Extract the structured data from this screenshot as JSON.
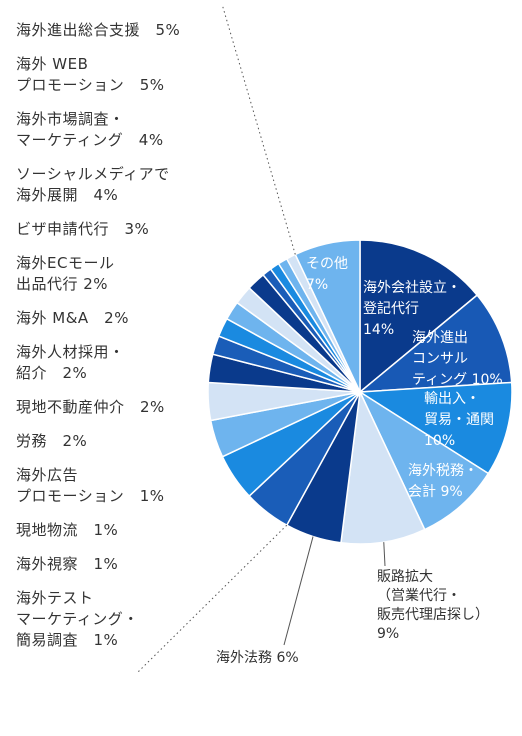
{
  "chart_data": {
    "type": "pie",
    "start": "top",
    "direction": "clockwise",
    "series": [
      {
        "name": "海外会社設立・登記代行",
        "value": 14,
        "color": "#0A3A8C",
        "label_lines": [
          "海外会社設立・",
          "登記代行",
          "14%"
        ],
        "label_pos": "inside"
      },
      {
        "name": "海外進出コンサルティング",
        "value": 10,
        "color": "#1859B5",
        "label_lines": [
          "海外進出",
          "コンサル",
          "ティング 10%"
        ],
        "label_pos": "inside"
      },
      {
        "name": "輸出入・貿易・通関",
        "value": 10,
        "color": "#1A8AE0",
        "label_lines": [
          "輸出入・",
          "貿易・通関",
          "10%"
        ],
        "label_pos": "inside"
      },
      {
        "name": "海外税務・会計",
        "value": 9,
        "color": "#6EB4EE",
        "label_lines": [
          "海外税務・",
          "会計 9%"
        ],
        "label_pos": "inside"
      },
      {
        "name": "販路拡大（営業代行・販売代理店探し）",
        "value": 9,
        "color": "#D3E3F5",
        "label_lines": [
          "販路拡大",
          "（営業代行・",
          "販売代理店探し）",
          "9%"
        ],
        "label_pos": "outside-bottom"
      },
      {
        "name": "海外法務",
        "value": 6,
        "color": "#0A3A8C",
        "label_lines": [
          "海外法務 6%"
        ],
        "label_pos": "outside-bottom-left"
      },
      {
        "name": "海外進出総合支援",
        "value": 5,
        "color": "#1A5DB8",
        "label_lines": [],
        "label_pos": "legend"
      },
      {
        "name": "海外WEBプロモーション",
        "value": 5,
        "color": "#1A8AE0",
        "label_lines": [],
        "label_pos": "legend"
      },
      {
        "name": "海外市場調査・マーケティング",
        "value": 4,
        "color": "#6EB4EE",
        "label_lines": [],
        "label_pos": "legend"
      },
      {
        "name": "ソーシャルメディアで海外展開",
        "value": 4,
        "color": "#D3E3F5",
        "label_lines": [],
        "label_pos": "legend"
      },
      {
        "name": "ビザ申請代行",
        "value": 3,
        "color": "#0A3A8C",
        "label_lines": [],
        "label_pos": "legend"
      },
      {
        "name": "海外ECモール出品代行",
        "value": 2,
        "color": "#1A5DB8",
        "label_lines": [],
        "label_pos": "legend"
      },
      {
        "name": "海外M&A",
        "value": 2,
        "color": "#1A8AE0",
        "label_lines": [],
        "label_pos": "legend"
      },
      {
        "name": "海外人材採用・紹介",
        "value": 2,
        "color": "#6EB4EE",
        "label_lines": [],
        "label_pos": "legend"
      },
      {
        "name": "現地不動産仲介",
        "value": 2,
        "color": "#D3E3F5",
        "label_lines": [],
        "label_pos": "legend"
      },
      {
        "name": "労務",
        "value": 2,
        "color": "#0A3A8C",
        "label_lines": [],
        "label_pos": "legend"
      },
      {
        "name": "海外広告プロモーション",
        "value": 1,
        "color": "#1A5DB8",
        "label_lines": [],
        "label_pos": "legend"
      },
      {
        "name": "現地物流",
        "value": 1,
        "color": "#1A8AE0",
        "label_lines": [],
        "label_pos": "legend"
      },
      {
        "name": "海外視察",
        "value": 1,
        "color": "#6EB4EE",
        "label_lines": [],
        "label_pos": "legend"
      },
      {
        "name": "海外テストマーケティング・簡易調査",
        "value": 1,
        "color": "#D3E3F5",
        "label_lines": [],
        "label_pos": "legend"
      },
      {
        "name": "その他",
        "value": 7,
        "color": "#6EB4EE",
        "label_lines": [
          "その他",
          "7%"
        ],
        "label_pos": "inside"
      }
    ],
    "legend": [
      {
        "lines": [
          "海外進出総合支援　5%"
        ]
      },
      {
        "lines": [
          "海外 WEB",
          "プロモーション　5%"
        ]
      },
      {
        "lines": [
          "海外市場調査・",
          "マーケティング　4%"
        ]
      },
      {
        "lines": [
          "ソーシャルメディアで",
          "海外展開　4%"
        ]
      },
      {
        "lines": [
          "ビザ申請代行　3%"
        ]
      },
      {
        "lines": [
          "海外ECモール",
          "出品代行  2%"
        ]
      },
      {
        "lines": [
          "海外 M&A　2%"
        ]
      },
      {
        "lines": [
          "海外人材採用・",
          "紹介　2%"
        ]
      },
      {
        "lines": [
          "現地不動産仲介　2%"
        ]
      },
      {
        "lines": [
          "労務　2%"
        ]
      },
      {
        "lines": [
          "海外広告",
          "プロモーション　1%"
        ]
      },
      {
        "lines": [
          "現地物流　1%"
        ]
      },
      {
        "lines": [
          "海外視察　1%"
        ]
      },
      {
        "lines": [
          "海外テスト",
          "マーケティング・",
          "簡易調査　1%"
        ]
      }
    ],
    "legend_placement": "left"
  }
}
